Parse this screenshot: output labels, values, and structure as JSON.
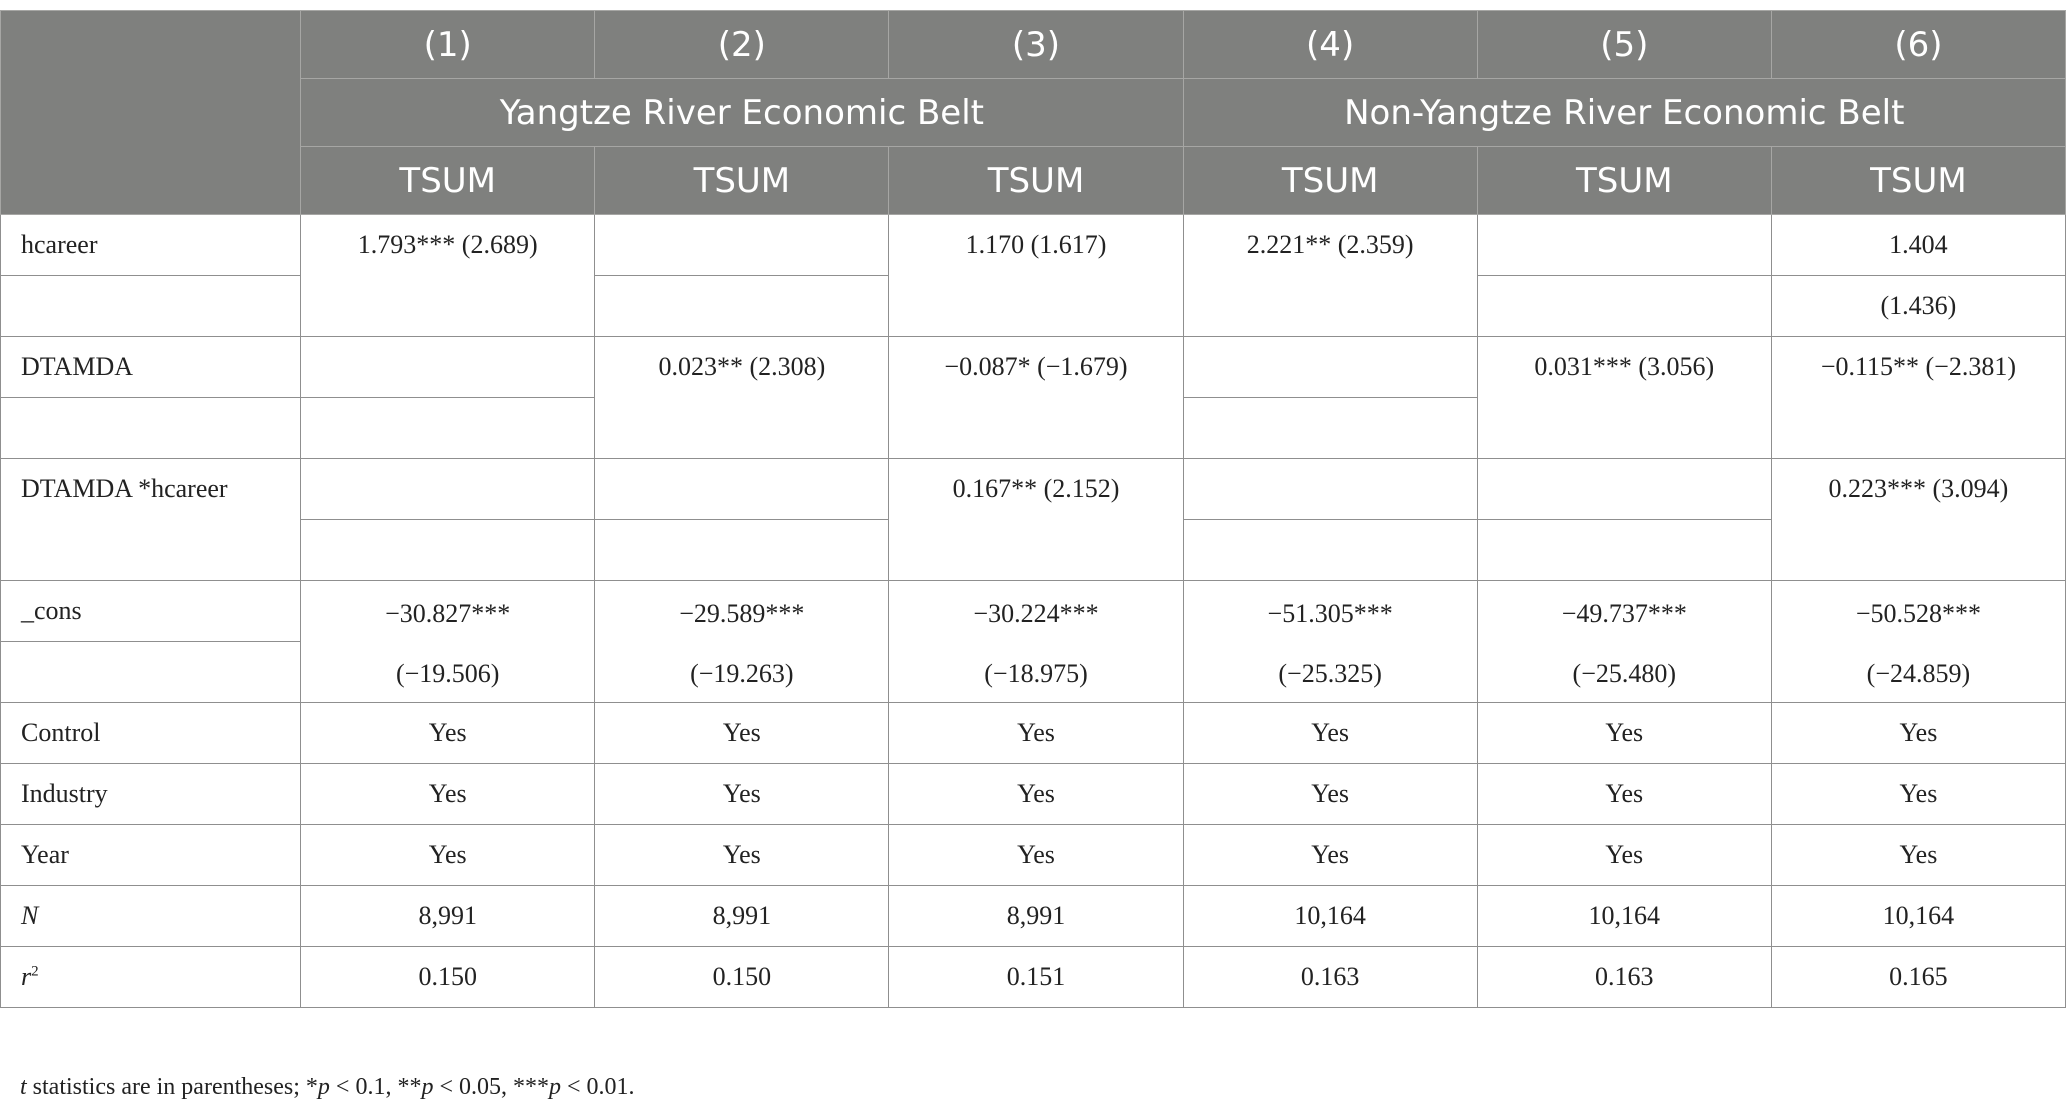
{
  "header": {
    "model_numbers": [
      "(1)",
      "(2)",
      "(3)",
      "(4)",
      "(5)",
      "(6)"
    ],
    "groups": [
      "Yangtze River Economic Belt",
      "Non-Yangtze River Economic Belt"
    ],
    "dependent_vars": [
      "TSUM",
      "TSUM",
      "TSUM",
      "TSUM",
      "TSUM",
      "TSUM"
    ]
  },
  "rows": {
    "hcareer": {
      "label": "hcareer",
      "c1": "1.793*** (2.689)",
      "c3": "1.170 (1.617)",
      "c4": "2.221** (2.359)",
      "c6_coef": "1.404",
      "c6_t": "(1.436)"
    },
    "dtamda": {
      "label": "DTAMDA",
      "c2": "0.023** (2.308)",
      "c3": "−0.087* (−1.679)",
      "c5": "0.031*** (3.056)",
      "c6": "−0.115** (−2.381)"
    },
    "interaction": {
      "label": "DTAMDA *hcareer",
      "c3": "0.167** (2.152)",
      "c6": "0.223*** (3.094)"
    },
    "cons": {
      "label": "_cons",
      "coefs": [
        "−30.827***",
        "−29.589***",
        "−30.224***",
        "−51.305***",
        "−49.737***",
        "−50.528***"
      ],
      "tstats": [
        "(−19.506)",
        "(−19.263)",
        "(−18.975)",
        "(−25.325)",
        "(−25.480)",
        "(−24.859)"
      ]
    },
    "control": {
      "label": "Control",
      "values": [
        "Yes",
        "Yes",
        "Yes",
        "Yes",
        "Yes",
        "Yes"
      ]
    },
    "industry": {
      "label": "Industry",
      "values": [
        "Yes",
        "Yes",
        "Yes",
        "Yes",
        "Yes",
        "Yes"
      ]
    },
    "year": {
      "label": "Year",
      "values": [
        "Yes",
        "Yes",
        "Yes",
        "Yes",
        "Yes",
        "Yes"
      ]
    },
    "n": {
      "label": "N",
      "values": [
        "8,991",
        "8,991",
        "8,991",
        "10,164",
        "10,164",
        "10,164"
      ]
    },
    "r2": {
      "label": "r",
      "label_sup": "2",
      "values": [
        "0.150",
        "0.150",
        "0.151",
        "0.163",
        "0.163",
        "0.165"
      ]
    }
  },
  "note": {
    "t": "t",
    "t_rest": " statistics are in parentheses; *",
    "p1": "p",
    "p1_rest": " < 0.1, **",
    "p2": "p",
    "p2_rest": " < 0.05, ***",
    "p3": "p",
    "p3_rest": " < 0.01."
  }
}
